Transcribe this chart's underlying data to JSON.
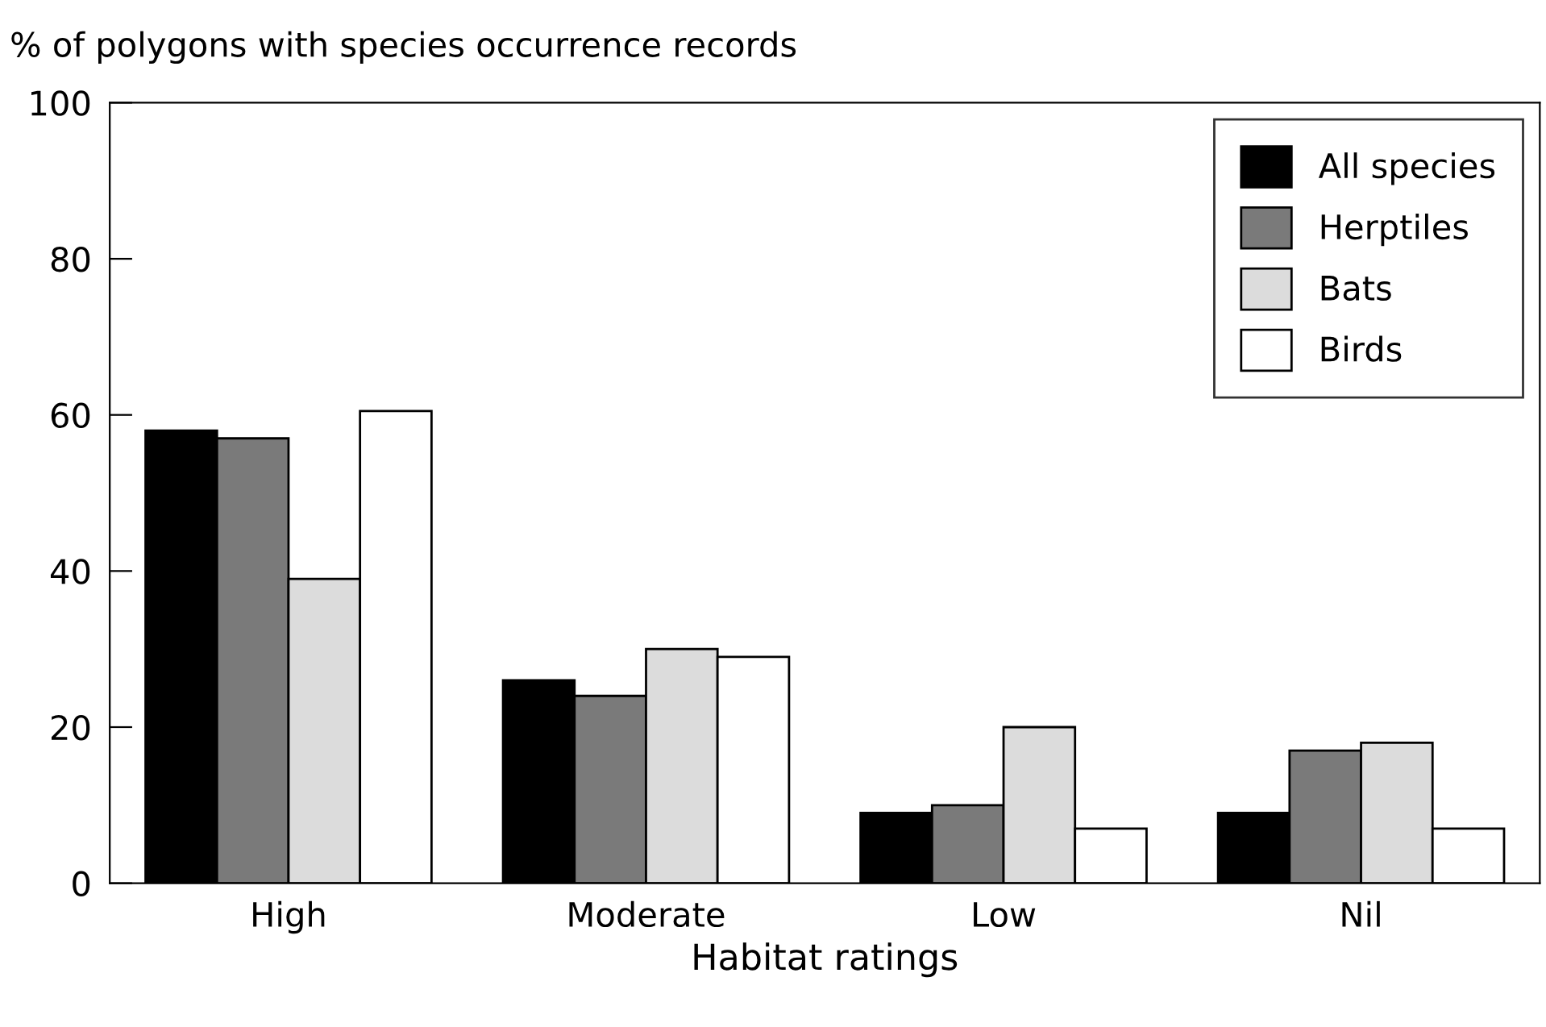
{
  "chart_data": {
    "type": "bar",
    "ylabel": "% of polygons with species occurrence records",
    "xlabel": "Habitat ratings",
    "categories": [
      "High",
      "Moderate",
      "Low",
      "Nil"
    ],
    "series": [
      {
        "name": "All species",
        "color": "#000000",
        "values": [
          58,
          26,
          9,
          9
        ]
      },
      {
        "name": "Herptiles",
        "color": "#7a7a7a",
        "values": [
          57,
          24,
          10,
          17
        ]
      },
      {
        "name": "Bats",
        "color": "#dcdcdc",
        "values": [
          39,
          30,
          20,
          18
        ]
      },
      {
        "name": "Birds",
        "color": "#ffffff",
        "values": [
          60.5,
          29,
          7,
          7
        ]
      }
    ],
    "ylim": [
      0,
      100
    ],
    "yticks": [
      0,
      20,
      40,
      60,
      80,
      100
    ],
    "grid": false,
    "legend": "top right"
  }
}
